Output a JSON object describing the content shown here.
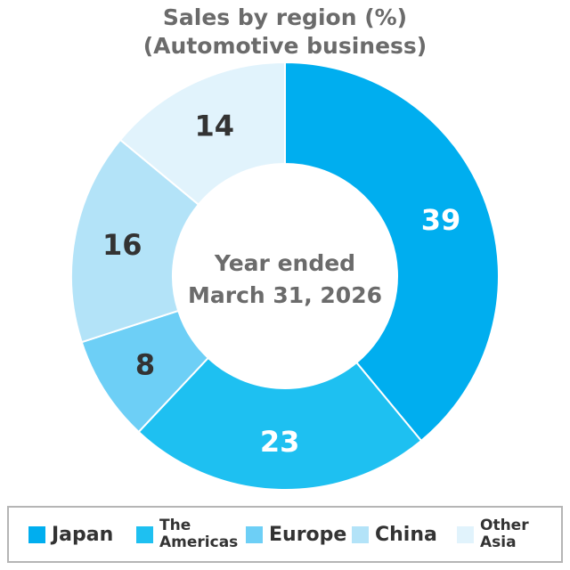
{
  "chart_data": {
    "type": "pie",
    "title": [
      "Sales by region (%)",
      "(Automotive business)"
    ],
    "center_label": [
      "Year ended",
      "March 31, 2026"
    ],
    "unit": "%",
    "categories": [
      "Japan",
      "The Americas",
      "Europe",
      "China",
      "Other Asia"
    ],
    "values": [
      39,
      23,
      8,
      16,
      14
    ],
    "legend": [
      "Japan",
      "The Americas",
      "Europe",
      "China",
      "Other Asia"
    ],
    "colors": [
      "#00aeef",
      "#1ec0f1",
      "#6dcff6",
      "#b3e3f8",
      "#e1f3fc"
    ],
    "label_colors": [
      "#ffffff",
      "#ffffff",
      "#333333",
      "#333333",
      "#333333"
    ],
    "legend_position": "bottom"
  }
}
